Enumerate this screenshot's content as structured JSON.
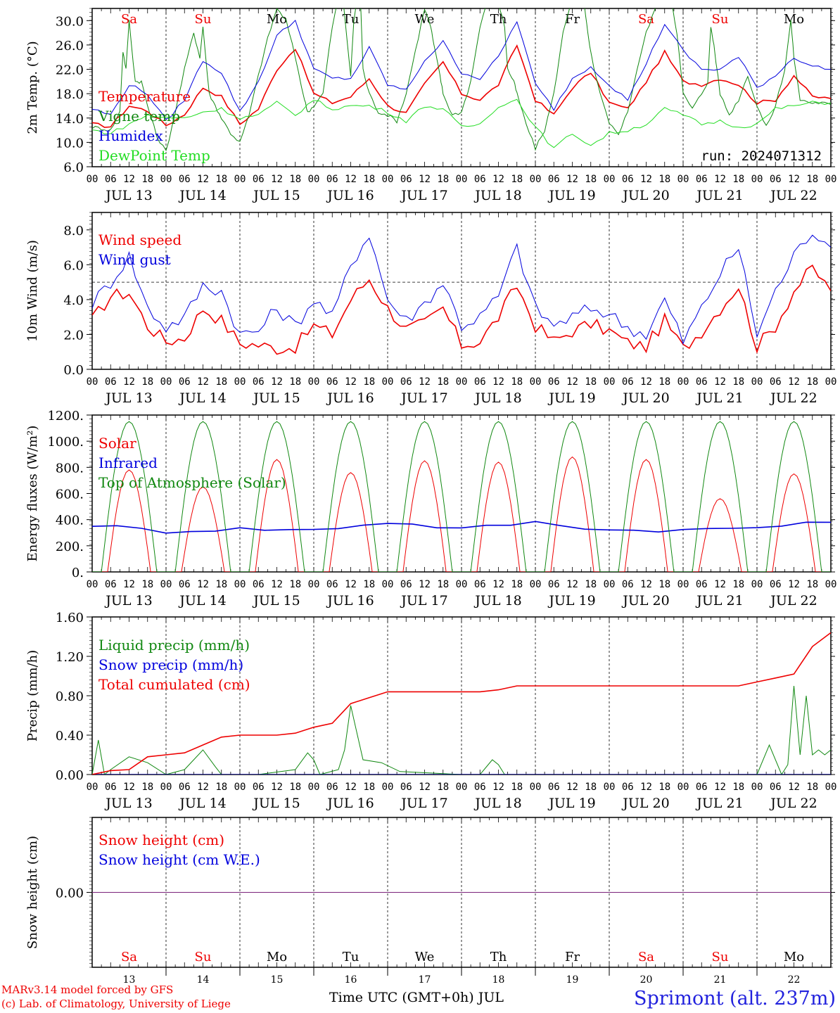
{
  "footer": {
    "credit_line_1": "MARv3.14 model forced by GFS",
    "credit_line_2": "(c) Lab. of Climatology, University of Liege",
    "xlabel": "Time UTC (GMT+0h) JUL",
    "station": "Sprimont (alt. 237m)"
  },
  "days": [
    {
      "abbr": "Sa",
      "date": "13",
      "label": "JUL 13",
      "weekend": true
    },
    {
      "abbr": "Su",
      "date": "14",
      "label": "JUL 14",
      "weekend": true
    },
    {
      "abbr": "Mo",
      "date": "15",
      "label": "JUL 15",
      "weekend": false
    },
    {
      "abbr": "Tu",
      "date": "16",
      "label": "JUL 16",
      "weekend": false
    },
    {
      "abbr": "We",
      "date": "17",
      "label": "JUL 17",
      "weekend": false
    },
    {
      "abbr": "Th",
      "date": "18",
      "label": "JUL 18",
      "weekend": false
    },
    {
      "abbr": "Fr",
      "date": "19",
      "label": "JUL 19",
      "weekend": false
    },
    {
      "abbr": "Sa",
      "date": "20",
      "label": "JUL 20",
      "weekend": true
    },
    {
      "abbr": "Su",
      "date": "21",
      "label": "JUL 21",
      "weekend": true
    },
    {
      "abbr": "Mo",
      "date": "22",
      "label": "JUL 22",
      "weekend": false
    }
  ],
  "hour_ticks": [
    "00",
    "06",
    "12",
    "18"
  ],
  "end_tick": "00",
  "colors": {
    "red": "#ee0000",
    "green": "#118811",
    "blue": "#0000dd",
    "light_green": "#22dd22",
    "weekend": "#ee0000",
    "weekday": "#000000",
    "station": "#2222dd",
    "snow_line": "#7a227a"
  },
  "chart_data": [
    {
      "id": "temp",
      "type": "line",
      "ylabel": "2m Temp. (°C)",
      "ylim": [
        6,
        32
      ],
      "yticks": [
        "6.0",
        "10.0",
        "14.0",
        "18.0",
        "22.0",
        "26.0",
        "30.0"
      ],
      "annotation": "run: 2024071312",
      "show_day_abbr": true,
      "series": [
        {
          "name": "Temperature",
          "color": "#ee0000",
          "x": [
            0,
            6,
            12,
            18,
            24,
            30,
            36,
            42,
            48,
            54,
            60,
            66,
            72,
            78,
            84,
            90,
            96,
            102,
            108,
            114,
            120,
            126,
            132,
            138,
            144,
            150,
            156,
            162,
            168,
            174,
            180,
            186,
            192,
            198,
            204,
            210,
            216,
            222,
            228,
            234,
            240
          ],
          "values": [
            13,
            12.6,
            16,
            15.2,
            12.8,
            14.6,
            19,
            17.5,
            13,
            15.5,
            22,
            25.5,
            18,
            16.5,
            17.5,
            20.5,
            16,
            14.8,
            19.5,
            23.2,
            18,
            17,
            19.5,
            26,
            17,
            14.5,
            19,
            21.5,
            16.5,
            15.5,
            20,
            24.8,
            20,
            19.5,
            20.5,
            19.5,
            16.5,
            17,
            21,
            17.5,
            17.2
          ]
        },
        {
          "name": "Vigne temp",
          "color": "#118811",
          "x": [
            0,
            3,
            6,
            9,
            10,
            11,
            12,
            14,
            16,
            18,
            21,
            24,
            27,
            30,
            33,
            35,
            36,
            38,
            40,
            42,
            45,
            48,
            51,
            54,
            57,
            60,
            63,
            66,
            69,
            70,
            72,
            75,
            78,
            81,
            84,
            85,
            87,
            88,
            90,
            93,
            96,
            99,
            102,
            105,
            108,
            110,
            111,
            113,
            114,
            117,
            120,
            123,
            126,
            129,
            132,
            134,
            135,
            137,
            138,
            141,
            144,
            147,
            150,
            153,
            156,
            158,
            160,
            161,
            163,
            165,
            168,
            171,
            174,
            177,
            180,
            183,
            186,
            188,
            190,
            192,
            195,
            198,
            200,
            201,
            202,
            204,
            207,
            210,
            213,
            216,
            219,
            222,
            225,
            227,
            228,
            230,
            234,
            237,
            240
          ],
          "values": [
            12.5,
            12.3,
            12,
            15,
            25,
            22,
            30,
            20,
            20,
            16,
            11,
            8.5,
            15,
            22,
            28,
            24,
            29,
            18,
            16,
            14,
            11.5,
            10,
            14.5,
            21,
            27,
            32,
            30,
            24,
            17,
            15,
            16,
            18,
            29,
            36,
            21,
            30,
            36,
            22,
            18,
            15,
            14.5,
            13.5,
            18,
            25,
            32,
            29,
            26,
            21,
            18,
            14.5,
            15,
            20,
            29,
            34,
            33,
            29,
            22,
            20,
            18,
            13,
            9,
            12,
            18,
            28,
            34,
            36,
            32,
            28,
            22,
            18,
            13,
            11.5,
            15,
            22,
            28,
            32,
            36,
            34,
            28,
            18,
            15.5,
            18,
            20,
            29,
            26,
            18,
            14.5,
            17,
            21,
            16,
            12.5,
            16,
            22,
            30,
            24,
            17,
            16.5,
            16.5,
            16.2
          ]
        },
        {
          "name": "Humidex",
          "color": "#0000dd",
          "x": [
            0,
            6,
            12,
            18,
            24,
            30,
            36,
            42,
            48,
            54,
            60,
            66,
            72,
            78,
            84,
            90,
            96,
            102,
            108,
            114,
            120,
            126,
            132,
            138,
            144,
            150,
            156,
            162,
            168,
            174,
            180,
            186,
            192,
            198,
            204,
            210,
            216,
            222,
            228,
            234,
            240
          ],
          "values": [
            15.5,
            14.5,
            19.5,
            18,
            13.5,
            17,
            23.5,
            21.5,
            15,
            20,
            27.5,
            30,
            22,
            20.5,
            20.5,
            25.5,
            19.5,
            18.5,
            23.5,
            26.5,
            21.5,
            20.5,
            24,
            30,
            19.5,
            15.5,
            20.5,
            22.5,
            19.5,
            17,
            23,
            29.5,
            25,
            22,
            22,
            24,
            19,
            21,
            24,
            22.5,
            22
          ]
        },
        {
          "name": "DewPoint Temp",
          "color": "#22dd22",
          "x": [
            0,
            6,
            12,
            18,
            24,
            30,
            36,
            42,
            48,
            54,
            60,
            66,
            72,
            78,
            84,
            90,
            96,
            102,
            108,
            114,
            120,
            126,
            132,
            138,
            144,
            150,
            156,
            162,
            168,
            174,
            180,
            186,
            192,
            198,
            204,
            210,
            216,
            222,
            228,
            234,
            240
          ],
          "values": [
            12,
            11.5,
            13,
            14.5,
            14,
            14,
            15,
            15.5,
            14,
            14.5,
            16.5,
            14.5,
            17,
            15.5,
            16,
            16,
            15,
            13.5,
            16,
            15.5,
            12.5,
            13,
            16,
            17,
            12.5,
            9,
            11.5,
            9.5,
            11.5,
            12,
            13,
            15.5,
            14.5,
            13,
            13.5,
            12.5,
            13,
            15.5,
            16,
            16.5,
            16.5
          ]
        }
      ]
    },
    {
      "id": "wind",
      "type": "line",
      "ylabel": "10m Wind (m/s)",
      "ylim": [
        0,
        9
      ],
      "yticks": [
        "0.0",
        "2.0",
        "4.0",
        "6.0",
        "8.0"
      ],
      "reference_line": 5,
      "series": [
        {
          "name": "Wind speed",
          "color": "#ee0000",
          "x": [
            0,
            6,
            12,
            18,
            24,
            30,
            36,
            42,
            48,
            54,
            60,
            66,
            72,
            78,
            84,
            90,
            96,
            102,
            108,
            114,
            120,
            126,
            132,
            138,
            144,
            150,
            156,
            162,
            168,
            174,
            180,
            186,
            192,
            198,
            204,
            210,
            216,
            222,
            228,
            234,
            240
          ],
          "values": [
            2.8,
            4.2,
            4.4,
            2.5,
            1.6,
            1.8,
            3.5,
            2.8,
            1.5,
            1.4,
            1.2,
            1.3,
            2.5,
            2,
            4,
            5.2,
            3.5,
            2.3,
            2.6,
            3.5,
            1.4,
            1.6,
            3,
            4.8,
            2.5,
            1.6,
            2.2,
            2.6,
            2.2,
            1.5,
            1.3,
            2.8,
            1.2,
            2.2,
            3.5,
            4.8,
            1.3,
            2.5,
            4.5,
            5.8,
            4.5
          ]
        },
        {
          "name": "Wind gust",
          "color": "#0000dd",
          "x": [
            0,
            6,
            12,
            18,
            24,
            30,
            36,
            42,
            48,
            54,
            60,
            66,
            72,
            78,
            84,
            90,
            96,
            102,
            108,
            114,
            120,
            126,
            132,
            138,
            144,
            150,
            156,
            162,
            168,
            174,
            180,
            186,
            192,
            198,
            204,
            210,
            216,
            222,
            228,
            234,
            240
          ],
          "values": [
            3.8,
            5,
            6.5,
            3.5,
            2.4,
            3,
            4.8,
            4.5,
            2,
            2.2,
            3.5,
            2.5,
            4,
            3,
            6,
            7.8,
            4,
            2.8,
            3.8,
            5,
            2.5,
            3,
            4.2,
            7,
            3.5,
            2.5,
            3,
            3.5,
            3.2,
            2.4,
            2,
            4,
            1.6,
            3.5,
            5.5,
            7,
            2,
            4.5,
            6.5,
            8,
            7
          ]
        }
      ]
    },
    {
      "id": "energy",
      "type": "line",
      "ylabel": "Energy fluxes (W/m²)",
      "ylim": [
        0,
        1200
      ],
      "yticks": [
        "0.",
        "200.",
        "400.",
        "600.",
        "800.",
        "1000.",
        "1200."
      ],
      "series": [
        {
          "name": "Solar",
          "color": "#ee0000",
          "peaks": [
            780,
            650,
            860,
            760,
            850,
            840,
            880,
            860,
            560,
            750
          ]
        },
        {
          "name": "Infrared",
          "color": "#0000dd",
          "x": [
            0,
            24,
            48,
            72,
            96,
            120,
            144,
            168,
            192,
            216,
            240
          ],
          "values": [
            360,
            310,
            330,
            320,
            380,
            330,
            380,
            320,
            320,
            340,
            380
          ]
        },
        {
          "name": "Top of Atmosphere (Solar)",
          "color": "#118811",
          "peaks": [
            1150,
            1150,
            1150,
            1150,
            1150,
            1150,
            1150,
            1150,
            1150,
            1150
          ]
        }
      ]
    },
    {
      "id": "precip",
      "type": "line",
      "ylabel": "Precip (mm/h)",
      "ylim": [
        0,
        1.6
      ],
      "yticks": [
        "0.00",
        "0.40",
        "0.80",
        "1.20",
        "1.60"
      ],
      "series": [
        {
          "name": "Liquid precip (mm/h)",
          "color": "#118811",
          "x": [
            0,
            2,
            4,
            6,
            12,
            18,
            24,
            30,
            36,
            40,
            42,
            48,
            54,
            66,
            70,
            72,
            74,
            80,
            82,
            84,
            88,
            94,
            100,
            120,
            126,
            130,
            132,
            134,
            140,
            144,
            216,
            220,
            224,
            226,
            228,
            230,
            232,
            234,
            236,
            238,
            240
          ],
          "values": [
            0,
            0.35,
            0,
            0.05,
            0.18,
            0.12,
            0,
            0.05,
            0.25,
            0.08,
            0,
            0,
            0,
            0.05,
            0.22,
            0.15,
            0,
            0.05,
            0.25,
            0.7,
            0.15,
            0.12,
            0.03,
            0,
            0,
            0.15,
            0.1,
            0,
            0,
            0,
            0,
            0.3,
            0,
            0.1,
            0.9,
            0.2,
            0.8,
            0.2,
            0.25,
            0.2,
            0.25
          ]
        },
        {
          "name": "Snow precip (mm/h)",
          "color": "#0000dd",
          "x": [
            0,
            240
          ],
          "values": [
            0,
            0
          ]
        },
        {
          "name": "Total cumulated (cm)",
          "color": "#ee0000",
          "x": [
            0,
            6,
            12,
            18,
            24,
            30,
            36,
            42,
            48,
            54,
            60,
            66,
            72,
            78,
            84,
            90,
            96,
            102,
            108,
            114,
            120,
            126,
            132,
            138,
            144,
            150,
            156,
            162,
            168,
            174,
            180,
            186,
            192,
            198,
            204,
            210,
            216,
            222,
            228,
            234,
            240
          ],
          "values": [
            0,
            0.04,
            0.05,
            0.18,
            0.2,
            0.22,
            0.3,
            0.38,
            0.4,
            0.4,
            0.4,
            0.42,
            0.48,
            0.52,
            0.72,
            0.78,
            0.84,
            0.84,
            0.84,
            0.84,
            0.84,
            0.84,
            0.86,
            0.9,
            0.9,
            0.9,
            0.9,
            0.9,
            0.9,
            0.9,
            0.9,
            0.9,
            0.9,
            0.9,
            0.9,
            0.9,
            0.94,
            0.98,
            1.02,
            1.3,
            1.44
          ]
        }
      ]
    },
    {
      "id": "snow",
      "type": "line",
      "ylabel": "Snow height (cm)",
      "ylim": [
        -1,
        1
      ],
      "yticks": [
        "0.00"
      ],
      "show_day_abbr_bottom": true,
      "series": [
        {
          "name": "Snow height (cm)",
          "color": "#ee0000",
          "x": [
            0,
            240
          ],
          "values": [
            0,
            0
          ]
        },
        {
          "name": "Snow height (cm W.E.)",
          "color": "#0000dd",
          "x": [
            0,
            240
          ],
          "values": [
            0,
            0
          ]
        }
      ]
    }
  ]
}
